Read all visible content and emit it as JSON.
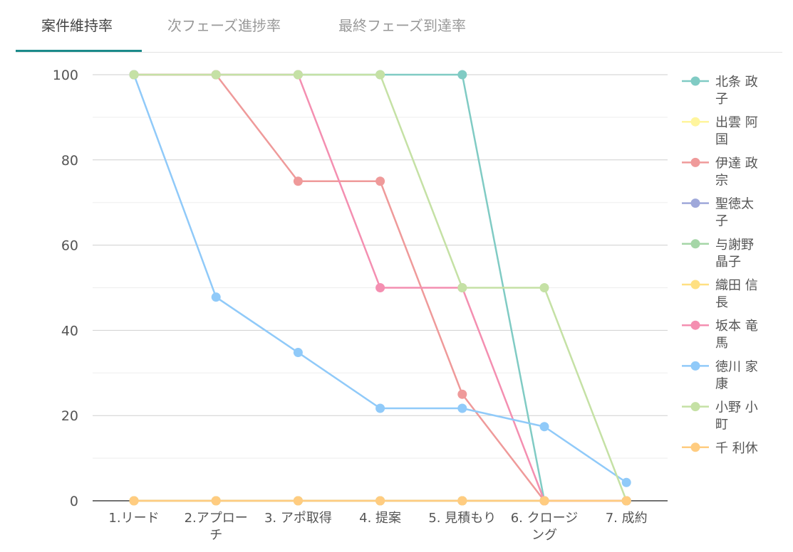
{
  "tabs": [
    {
      "label": "案件維持率",
      "active": true
    },
    {
      "label": "次フェーズ進捗率",
      "active": false
    },
    {
      "label": "最終フェーズ到達率",
      "active": false
    }
  ],
  "chart_data": {
    "type": "line",
    "title": "",
    "xlabel": "",
    "ylabel": "",
    "categories": [
      [
        "1.リード"
      ],
      [
        "2.アプロー",
        "チ"
      ],
      [
        "3. アポ取得"
      ],
      [
        "4. 提案"
      ],
      [
        "5. 見積もり"
      ],
      [
        "6. クロージ",
        "ング"
      ],
      [
        "7. 成約"
      ]
    ],
    "ylim": [
      0,
      100
    ],
    "yticks": [
      0,
      20,
      40,
      60,
      80,
      100
    ],
    "grid": true,
    "legend_position": "right",
    "series": [
      {
        "name": "北条 政子",
        "legend_lines": [
          "北条 政",
          "子"
        ],
        "color": "#80cbc4",
        "values": [
          100,
          100,
          100,
          100,
          100,
          0,
          0
        ]
      },
      {
        "name": "出雲 阿国",
        "legend_lines": [
          "出雲 阿",
          "国"
        ],
        "color": "#fff59d",
        "values": [
          0,
          0,
          0,
          0,
          0,
          0,
          0
        ]
      },
      {
        "name": "伊達 政宗",
        "legend_lines": [
          "伊達 政",
          "宗"
        ],
        "color": "#ef9a9a",
        "values": [
          100,
          100,
          75,
          75,
          25,
          0,
          0
        ]
      },
      {
        "name": "聖徳太子",
        "legend_lines": [
          "聖徳太",
          "子"
        ],
        "color": "#9fa8da",
        "values": [
          0,
          0,
          0,
          0,
          0,
          0,
          0
        ]
      },
      {
        "name": "与謝野晶子",
        "legend_lines": [
          "与謝野",
          "晶子"
        ],
        "color": "#a5d6a7",
        "values": [
          0,
          0,
          0,
          0,
          0,
          0,
          0
        ]
      },
      {
        "name": "織田 信長",
        "legend_lines": [
          "織田 信",
          "長"
        ],
        "color": "#ffe082",
        "values": [
          0,
          0,
          0,
          0,
          0,
          0,
          0
        ]
      },
      {
        "name": "坂本 竜馬",
        "legend_lines": [
          "坂本 竜",
          "馬"
        ],
        "color": "#f48fb1",
        "values": [
          100,
          100,
          100,
          50,
          50,
          0,
          0
        ]
      },
      {
        "name": "徳川 家康",
        "legend_lines": [
          "徳川 家",
          "康"
        ],
        "color": "#90caf9",
        "values": [
          100,
          47.8,
          34.8,
          21.7,
          21.7,
          17.4,
          4.3
        ]
      },
      {
        "name": "小野 小町",
        "legend_lines": [
          "小野 小",
          "町"
        ],
        "color": "#c5e1a5",
        "values": [
          100,
          100,
          100,
          100,
          50,
          50,
          0
        ]
      },
      {
        "name": "千 利休",
        "legend_lines": [
          "千 利休"
        ],
        "color": "#ffcc80",
        "values": [
          0,
          0,
          0,
          0,
          0,
          0,
          0
        ]
      }
    ]
  }
}
